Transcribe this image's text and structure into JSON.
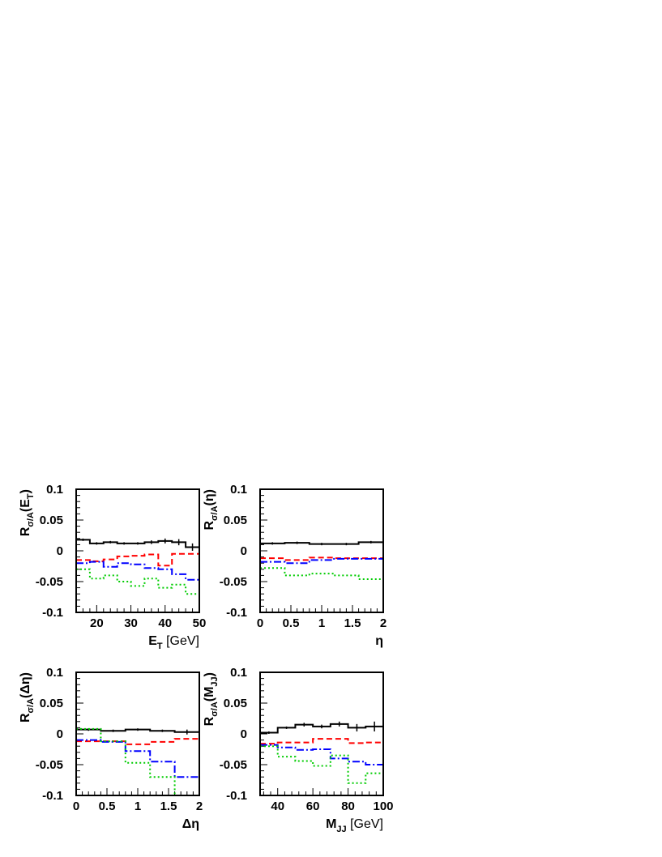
{
  "chart_data": [
    {
      "type": "line",
      "panel": "top-left",
      "ylabel": {
        "main": "R",
        "sub": "σ/A",
        "arg_pre": "(E",
        "arg_sub": "T",
        "arg_post": ")"
      },
      "xlabel": {
        "main": "E",
        "sub": "T",
        "post": " [GeV]"
      },
      "xlim": [
        14,
        50
      ],
      "ylim": [
        -0.1,
        0.1
      ],
      "xticks": [
        20,
        30,
        40,
        50
      ],
      "yticks": [
        -0.1,
        -0.05,
        0,
        0.05,
        0.1
      ],
      "xtick_labels": [
        "20",
        "30",
        "40",
        "50"
      ],
      "ytick_labels": [
        "-0.1",
        "-0.05",
        "0",
        "0.05",
        "0.1"
      ],
      "bin_edges": [
        14,
        18,
        22,
        26,
        30,
        34,
        38,
        42,
        46,
        50
      ],
      "series": [
        {
          "color": "#000000",
          "dash": "",
          "values": [
            0.018,
            0.012,
            0.014,
            0.012,
            0.012,
            0.014,
            0.016,
            0.014,
            0.006
          ],
          "errors": [
            0.001,
            0.001,
            0.001,
            0.001,
            0.002,
            0.003,
            0.004,
            0.005,
            0.006
          ]
        },
        {
          "color": "#ff0000",
          "dash": "7,4",
          "values": [
            -0.015,
            -0.017,
            -0.014,
            -0.009,
            -0.008,
            -0.006,
            -0.024,
            -0.005,
            -0.005
          ]
        },
        {
          "color": "#0000ff",
          "dash": "9,3,2,3",
          "values": [
            -0.02,
            -0.018,
            -0.026,
            -0.02,
            -0.022,
            -0.028,
            -0.03,
            -0.038,
            -0.047
          ]
        },
        {
          "color": "#00cc00",
          "dash": "2,3",
          "values": [
            -0.03,
            -0.045,
            -0.04,
            -0.05,
            -0.057,
            -0.045,
            -0.06,
            -0.055,
            -0.07
          ]
        }
      ]
    },
    {
      "type": "line",
      "panel": "top-right",
      "ylabel": {
        "main": "R",
        "sub": "σ/A",
        "arg_pre": "(η)",
        "arg_sub": "",
        "arg_post": ""
      },
      "xlabel": {
        "main": "η",
        "sub": "",
        "post": ""
      },
      "xlim": [
        0,
        2
      ],
      "ylim": [
        -0.1,
        0.1
      ],
      "xticks": [
        0,
        0.5,
        1,
        1.5,
        2
      ],
      "yticks": [
        -0.1,
        -0.05,
        0,
        0.05,
        0.1
      ],
      "xtick_labels": [
        "0",
        "0.5",
        "1",
        "1.5",
        "2"
      ],
      "ytick_labels": [
        "-0.1",
        "-0.05",
        "0",
        "0.05",
        "0.1"
      ],
      "bin_edges": [
        0,
        0.4,
        0.8,
        1.2,
        1.6,
        2.0
      ],
      "series": [
        {
          "color": "#000000",
          "dash": "",
          "values": [
            0.012,
            0.013,
            0.011,
            0.011,
            0.014
          ],
          "errors": [
            0.001,
            0.001,
            0.001,
            0.001,
            0.001
          ]
        },
        {
          "color": "#ff0000",
          "dash": "7,4",
          "values": [
            -0.012,
            -0.015,
            -0.011,
            -0.012,
            -0.012
          ]
        },
        {
          "color": "#0000ff",
          "dash": "9,3,2,3",
          "values": [
            -0.018,
            -0.02,
            -0.015,
            -0.013,
            -0.013
          ]
        },
        {
          "color": "#00cc00",
          "dash": "2,3",
          "values": [
            -0.028,
            -0.04,
            -0.037,
            -0.04,
            -0.046
          ]
        }
      ]
    },
    {
      "type": "line",
      "panel": "bottom-left",
      "ylabel": {
        "main": "R",
        "sub": "σ/A",
        "arg_pre": "(Δη)",
        "arg_sub": "",
        "arg_post": ""
      },
      "xlabel": {
        "main": "Δη",
        "sub": "",
        "post": ""
      },
      "xlim": [
        0,
        2
      ],
      "ylim": [
        -0.1,
        0.1
      ],
      "xticks": [
        0,
        0.5,
        1,
        1.5,
        2
      ],
      "yticks": [
        -0.1,
        -0.05,
        0,
        0.05,
        0.1
      ],
      "xtick_labels": [
        "0",
        "0.5",
        "1",
        "1.5",
        "2"
      ],
      "ytick_labels": [
        "-0.1",
        "-0.05",
        "0",
        "0.05",
        "0.1"
      ],
      "bin_edges": [
        0,
        0.4,
        0.8,
        1.2,
        1.6,
        2.0
      ],
      "series": [
        {
          "color": "#000000",
          "dash": "",
          "values": [
            0.007,
            0.005,
            0.007,
            0.005,
            0.003
          ],
          "errors": [
            0.001,
            0.001,
            0.001,
            0.002,
            0.004
          ]
        },
        {
          "color": "#ff0000",
          "dash": "7,4",
          "values": [
            -0.012,
            -0.012,
            -0.017,
            -0.013,
            -0.008
          ]
        },
        {
          "color": "#0000ff",
          "dash": "9,3,2,3",
          "values": [
            -0.01,
            -0.013,
            -0.028,
            -0.045,
            -0.07
          ]
        },
        {
          "color": "#00cc00",
          "dash": "2,3",
          "values": [
            0.008,
            -0.012,
            -0.047,
            -0.07,
            -0.1
          ]
        }
      ]
    },
    {
      "type": "line",
      "panel": "bottom-right",
      "ylabel": {
        "main": "R",
        "sub": "σ/A",
        "arg_pre": "(M",
        "arg_sub": "JJ",
        "arg_post": ")"
      },
      "xlabel": {
        "main": "M",
        "sub": "JJ",
        "post": " [GeV]"
      },
      "xlim": [
        30,
        100
      ],
      "ylim": [
        -0.1,
        0.1
      ],
      "xticks": [
        40,
        60,
        80,
        100
      ],
      "yticks": [
        -0.1,
        -0.05,
        0,
        0.05,
        0.1
      ],
      "xtick_labels": [
        "40",
        "60",
        "80",
        "100"
      ],
      "ytick_labels": [
        "-0.1",
        "-0.05",
        "0",
        "0.05",
        "0.1"
      ],
      "bin_edges": [
        30,
        40,
        50,
        60,
        70,
        80,
        90,
        100
      ],
      "series": [
        {
          "color": "#000000",
          "dash": "",
          "values": [
            0.002,
            0.01,
            0.015,
            0.012,
            0.016,
            0.01,
            0.012
          ],
          "errors": [
            0.001,
            0.002,
            0.003,
            0.003,
            0.004,
            0.006,
            0.008
          ]
        },
        {
          "color": "#ff0000",
          "dash": "7,4",
          "values": [
            -0.016,
            -0.014,
            -0.014,
            -0.008,
            -0.008,
            -0.015,
            -0.014
          ]
        },
        {
          "color": "#0000ff",
          "dash": "9,3,2,3",
          "values": [
            -0.018,
            -0.022,
            -0.026,
            -0.025,
            -0.04,
            -0.045,
            -0.05
          ]
        },
        {
          "color": "#00cc00",
          "dash": "2,3",
          "values": [
            -0.02,
            -0.037,
            -0.044,
            -0.052,
            -0.035,
            -0.08,
            -0.064
          ]
        }
      ]
    }
  ]
}
